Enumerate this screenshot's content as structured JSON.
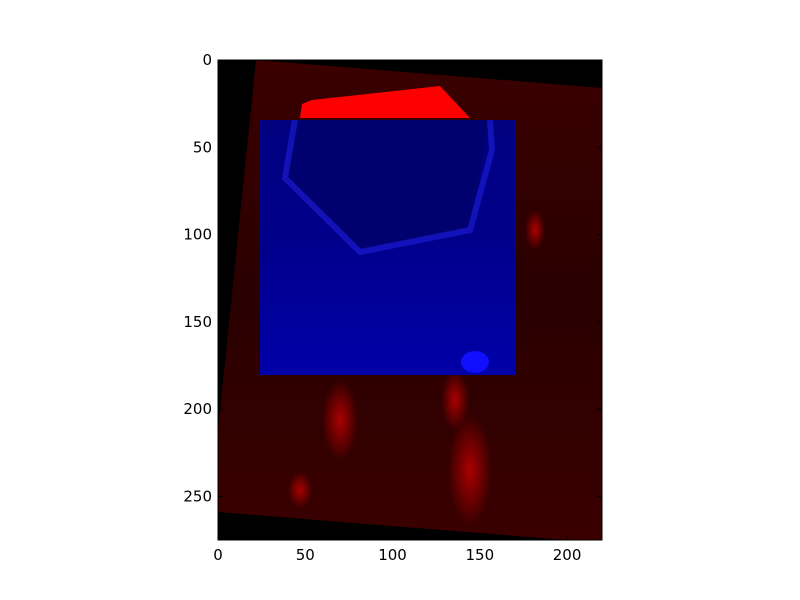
{
  "figure": {
    "x_axis": {
      "ticks": [
        0,
        50,
        100,
        150,
        200
      ],
      "range": [
        0,
        220
      ]
    },
    "y_axis": {
      "ticks": [
        0,
        50,
        100,
        150,
        200,
        250
      ],
      "range": [
        0,
        275
      ],
      "inverted": true
    },
    "overlay": {
      "red_channel_description": "rotated red-tinted base image",
      "blue_channel_description": "blue-tinted overlay region"
    },
    "colors": {
      "background": "#000000",
      "red_channel": "#ff0000",
      "blue_channel": "#0000ff"
    }
  }
}
